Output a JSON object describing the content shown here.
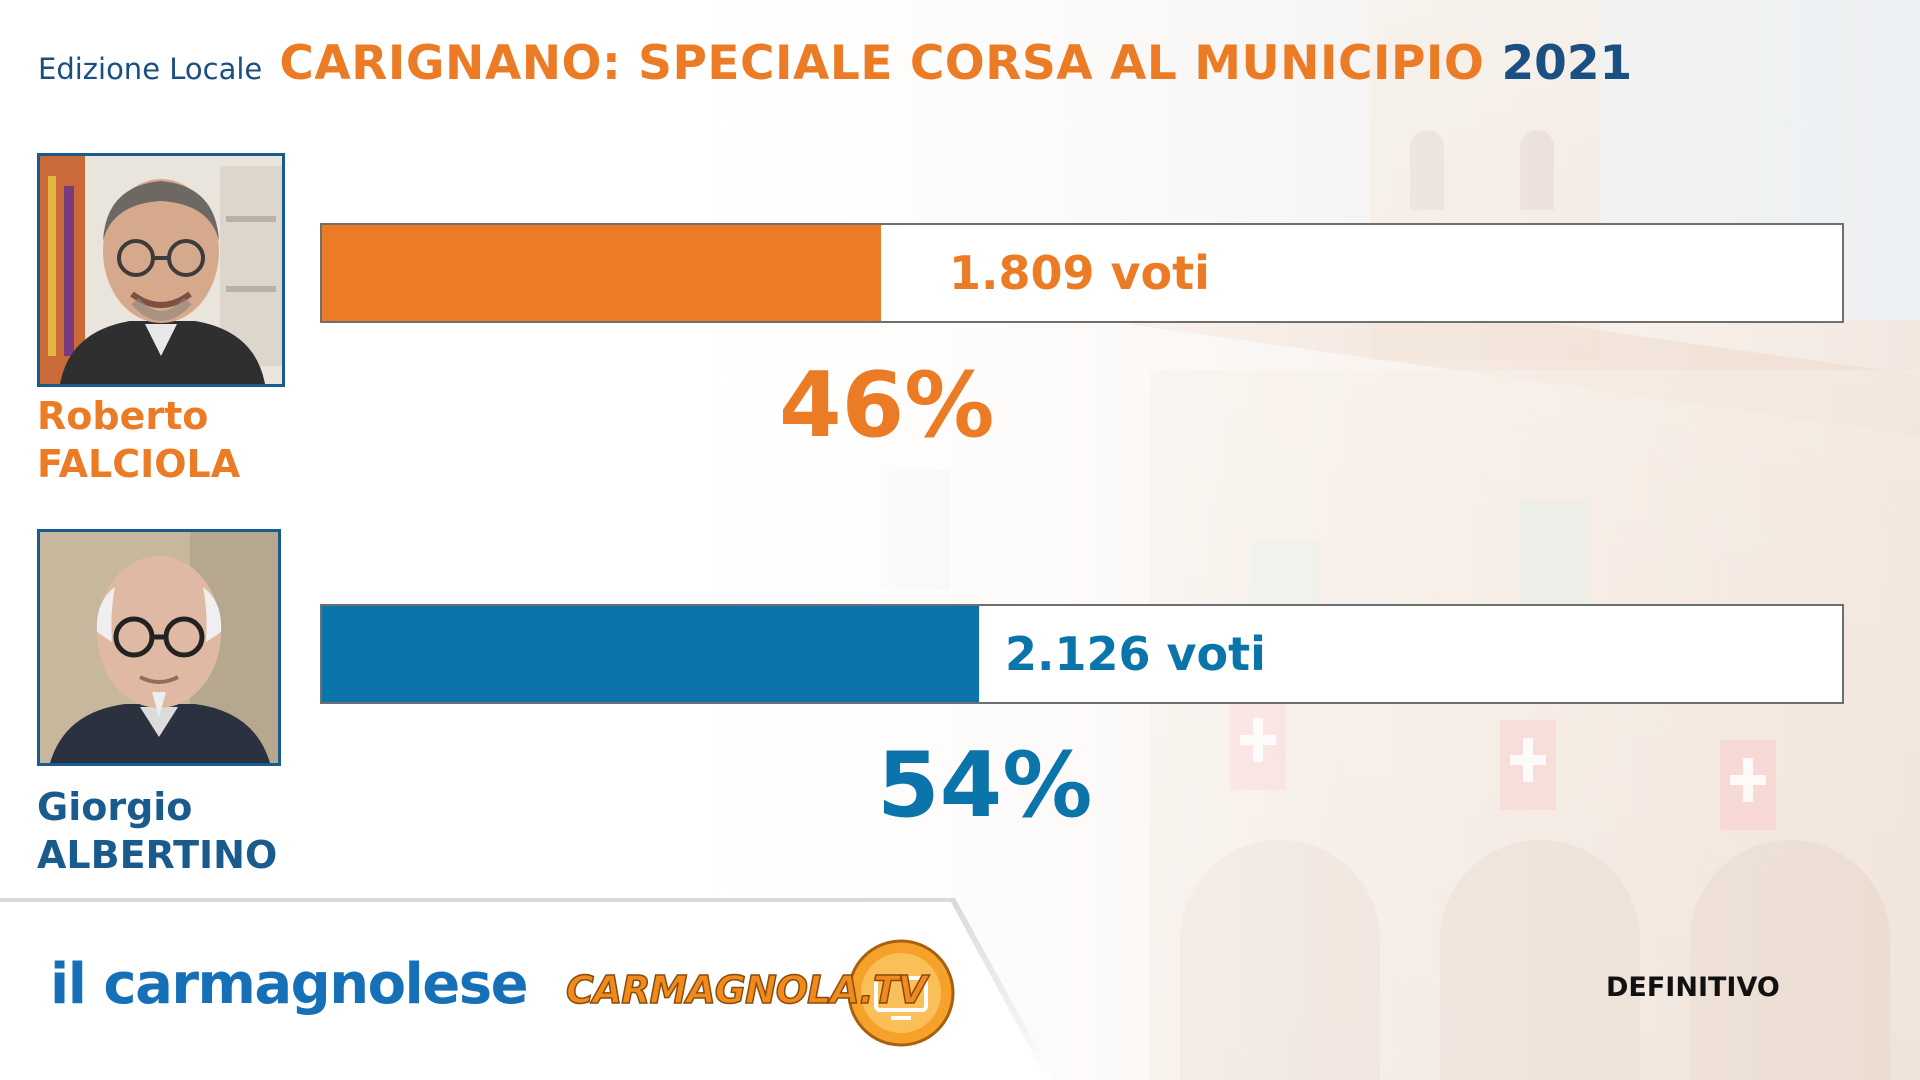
{
  "header": {
    "edition": "Edizione Locale",
    "title": "CARIGNANO: SPECIALE CORSA AL MUNICIPIO",
    "year": "2021"
  },
  "colors": {
    "orange": "#ec7b25",
    "blue": "#0a74ab",
    "navy": "#1a4f82"
  },
  "chart_data": {
    "type": "bar",
    "orientation": "horizontal",
    "categories": [
      "Roberto FALCIOLA",
      "Giorgio ALBERTINO"
    ],
    "values": [
      46,
      54
    ],
    "votes": [
      "1.809 voti",
      "2.126 voti"
    ],
    "percent_labels": [
      "46%",
      "54%"
    ],
    "xlim": [
      0,
      100
    ],
    "grid": false
  },
  "candidates": [
    {
      "first_name": "Roberto",
      "last_name": "FALCIOLA",
      "votes_label": "1.809 voti",
      "percent_label": "46%",
      "percent": 46,
      "color": "#ec7b25",
      "photo_icon": "candidate-portrait"
    },
    {
      "first_name": "Giorgio",
      "last_name": "ALBERTINO",
      "votes_label": "2.126 voti",
      "percent_label": "54%",
      "percent": 54,
      "color": "#0a74ab",
      "photo_icon": "candidate-portrait"
    }
  ],
  "footer": {
    "logo_il": "il carmagnolese",
    "logo_tv": "CARMAGNOLA.TV",
    "status": "DEFINITIVO"
  }
}
